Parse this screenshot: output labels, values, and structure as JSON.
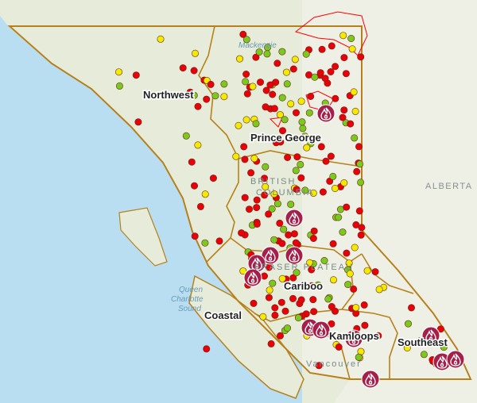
{
  "map": {
    "regions": [
      "Northwest",
      "Prince George",
      "Cariboo",
      "Coastal",
      "Kamloops",
      "Southeast"
    ],
    "places": {
      "vancouver": "Vancouver",
      "alberta": "ALBERTA",
      "queen_charlotte": [
        "Queen",
        "Charlotte",
        "Sound"
      ],
      "bc": [
        "BRITISH",
        "COLUMBIA"
      ],
      "plateau": "FRASER PLATEAU",
      "mackenzie": "Mackenzie"
    },
    "legend_colors": {
      "out_of_control": "#e8000b",
      "being_held": "#f2ea00",
      "under_control": "#7ac91e",
      "fire_of_note": "#a3204a",
      "fire_perimeter": "#ff0000",
      "region_boundary": "#b8801a"
    }
  }
}
